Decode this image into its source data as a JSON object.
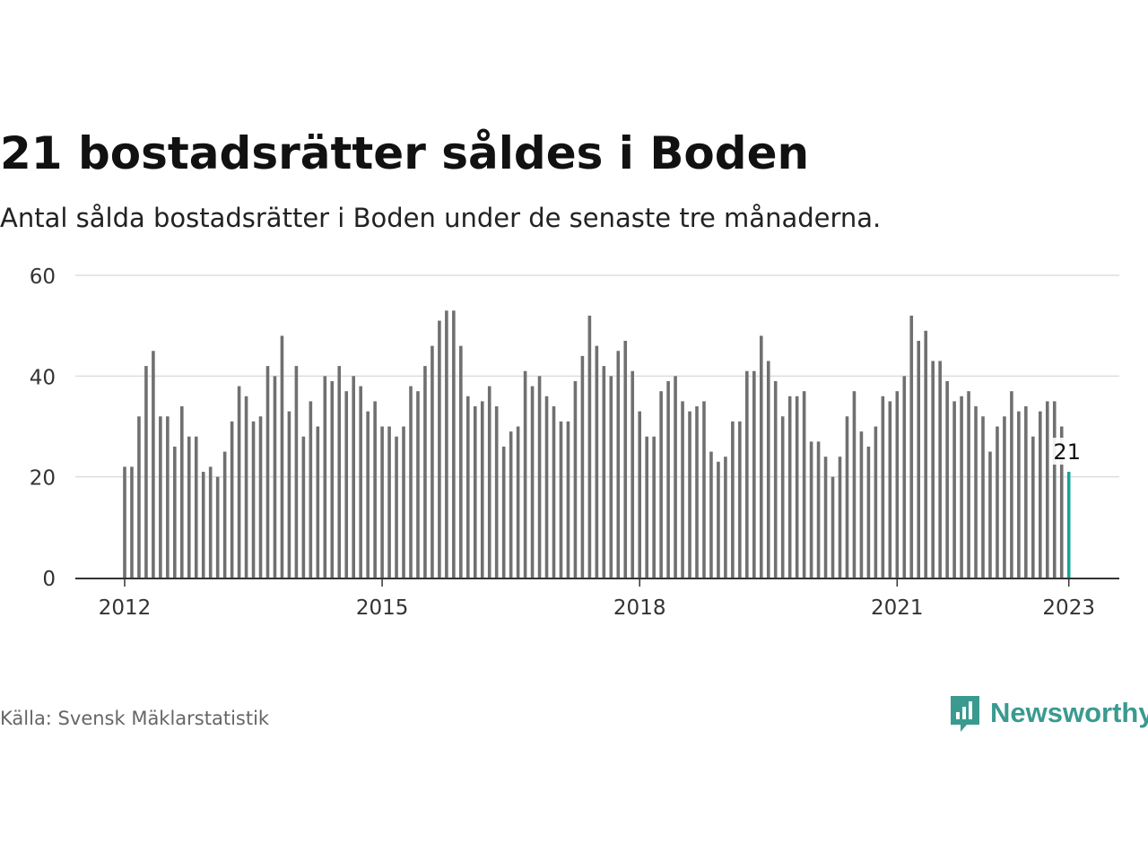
{
  "title": "21 bostadsrätter såldes i Boden",
  "subtitle": "Antal sålda bostadsrätter i Boden under de senaste tre månaderna.",
  "source": "Källa: Svensk Mäklarstatistik",
  "brand": {
    "name": "Newsworthy",
    "color": "#3a9a90"
  },
  "colors": {
    "bar": "#707070",
    "highlight": "#1aa39a",
    "grid": "#dddddd",
    "axis": "#333333"
  },
  "chart_data": {
    "type": "bar",
    "title": "21 bostadsrätter såldes i Boden",
    "xlabel": "",
    "ylabel": "",
    "ylim": [
      0,
      60
    ],
    "yticks": [
      0,
      20,
      40,
      60
    ],
    "xticks": [
      {
        "label": "2012",
        "index": 0
      },
      {
        "label": "2015",
        "index": 36
      },
      {
        "label": "2018",
        "index": 72
      },
      {
        "label": "2021",
        "index": 108
      },
      {
        "label": "2023",
        "index": 132
      }
    ],
    "start": "2012-01",
    "end": "2023-01",
    "grid": true,
    "values": [
      22,
      22,
      32,
      42,
      45,
      32,
      32,
      26,
      34,
      28,
      28,
      21,
      22,
      20,
      25,
      31,
      38,
      36,
      31,
      32,
      42,
      40,
      48,
      33,
      42,
      28,
      35,
      30,
      40,
      39,
      42,
      37,
      40,
      38,
      33,
      35,
      30,
      30,
      28,
      30,
      38,
      37,
      42,
      46,
      51,
      53,
      53,
      46,
      36,
      34,
      35,
      38,
      34,
      26,
      29,
      30,
      41,
      38,
      40,
      36,
      34,
      31,
      31,
      39,
      44,
      52,
      46,
      42,
      40,
      45,
      47,
      41,
      33,
      28,
      28,
      37,
      39,
      40,
      35,
      33,
      34,
      35,
      25,
      23,
      24,
      31,
      31,
      41,
      41,
      48,
      43,
      39,
      32,
      36,
      36,
      37,
      27,
      27,
      24,
      20,
      24,
      32,
      37,
      29,
      26,
      30,
      36,
      35,
      37,
      40,
      52,
      47,
      49,
      43,
      43,
      39,
      35,
      36,
      37,
      34,
      32,
      25,
      30,
      32,
      37,
      33,
      34,
      28,
      33,
      35,
      35,
      30,
      21
    ],
    "highlight": {
      "index": 132,
      "label": "21"
    }
  }
}
